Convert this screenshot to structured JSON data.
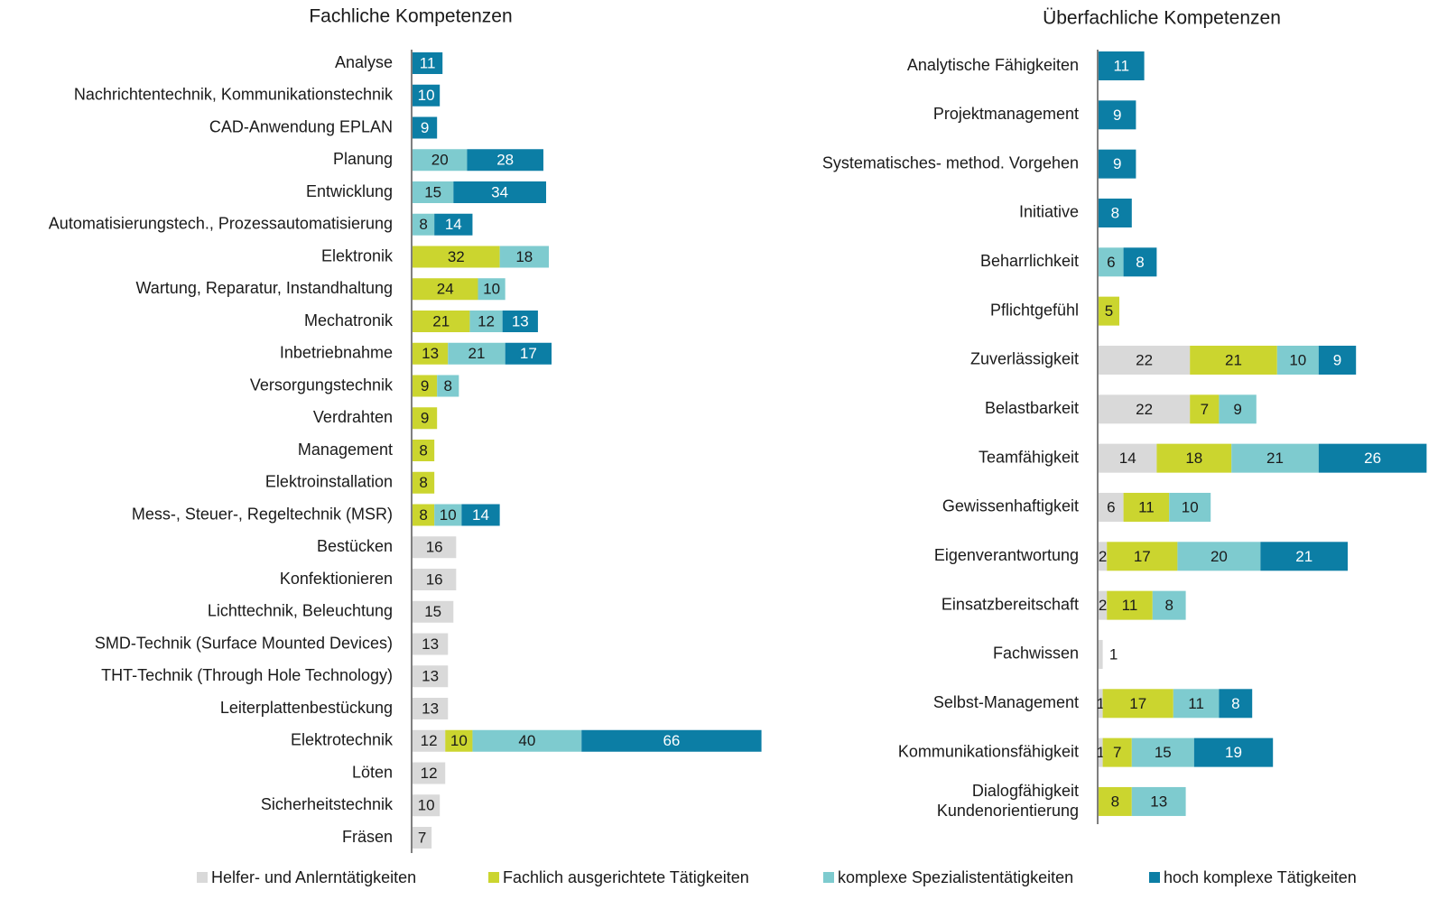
{
  "chart_data": [
    {
      "type": "stacked-bar-horizontal",
      "title": "Fachliche Kompetenzen",
      "categories": [
        "Analyse",
        "Nachrichtentechnik, Kommunikationstechnik",
        "CAD-Anwendung EPLAN",
        "Planung",
        "Entwicklung",
        "Automatisierungstech., Prozessautomatisierung",
        "Elektronik",
        "Wartung, Reparatur, Instandhaltung",
        "Mechatronik",
        "Inbetriebnahme",
        "Versorgungstechnik",
        "Verdrahten",
        "Management",
        "Elektroinstallation",
        "Mess-, Steuer-, Regeltechnik (MSR)",
        "Bestücken",
        "Konfektionieren",
        "Lichttechnik, Beleuchtung",
        "SMD-Technik (Surface Mounted Devices)",
        "THT-Technik (Through Hole Technology)",
        "Leiterplattenbestückung",
        "Elektrotechnik",
        "Löten",
        "Sicherheitstechnik",
        "Fräsen"
      ],
      "series": [
        {
          "name": "Helfer- und Anlerntätigkeiten",
          "color": "#d9d9d9",
          "values": [
            null,
            null,
            null,
            null,
            null,
            null,
            null,
            null,
            null,
            null,
            null,
            null,
            null,
            null,
            null,
            16,
            16,
            15,
            13,
            13,
            13,
            12,
            12,
            10,
            7
          ]
        },
        {
          "name": "Fachlich ausgerichtete Tätigkeiten",
          "color": "#cbd52f",
          "values": [
            null,
            null,
            null,
            null,
            null,
            null,
            32,
            24,
            21,
            13,
            9,
            9,
            8,
            8,
            8,
            null,
            null,
            null,
            null,
            null,
            null,
            10,
            null,
            null,
            null
          ]
        },
        {
          "name": "komplexe Spezialistentätigkeiten",
          "color": "#7ecbcf",
          "values": [
            null,
            null,
            null,
            20,
            15,
            8,
            18,
            10,
            12,
            21,
            8,
            null,
            null,
            null,
            10,
            null,
            null,
            null,
            null,
            null,
            null,
            40,
            null,
            null,
            null
          ]
        },
        {
          "name": "hoch komplexe Tätigkeiten",
          "color": "#0c7ea5",
          "values": [
            11,
            10,
            9,
            28,
            34,
            14,
            null,
            null,
            13,
            17,
            null,
            null,
            null,
            null,
            14,
            null,
            null,
            null,
            null,
            null,
            null,
            66,
            null,
            null,
            null
          ]
        }
      ]
    },
    {
      "type": "stacked-bar-horizontal",
      "title": "Überfachliche Kompetenzen",
      "categories": [
        "Analytische Fähigkeiten",
        "Projektmanagement",
        "Systematisches- method. Vorgehen",
        "Initiative",
        "Beharrlichkeit",
        "Pflichtgefühl",
        "Zuverlässigkeit",
        "Belastbarkeit",
        "Teamfähigkeit",
        "Gewissenhaftigkeit",
        "Eigenverantwortung",
        "Einsatzbereitschaft",
        "Fachwissen",
        "Selbst-Management",
        "Kommunikationsfähigkeit",
        "Dialogfähigkeit\nKundenorientierung"
      ],
      "series": [
        {
          "values": [
            null,
            null,
            null,
            null,
            null,
            null,
            22,
            22,
            14,
            6,
            2,
            2,
            1,
            1,
            1,
            null
          ]
        },
        {
          "values": [
            null,
            null,
            null,
            null,
            null,
            5,
            21,
            7,
            18,
            11,
            17,
            11,
            null,
            17,
            7,
            8
          ]
        },
        {
          "values": [
            null,
            null,
            null,
            null,
            6,
            null,
            10,
            9,
            21,
            10,
            20,
            8,
            null,
            11,
            15,
            13
          ]
        },
        {
          "values": [
            11,
            9,
            9,
            8,
            8,
            null,
            9,
            null,
            26,
            null,
            21,
            null,
            null,
            8,
            19,
            null
          ]
        }
      ]
    }
  ]
}
